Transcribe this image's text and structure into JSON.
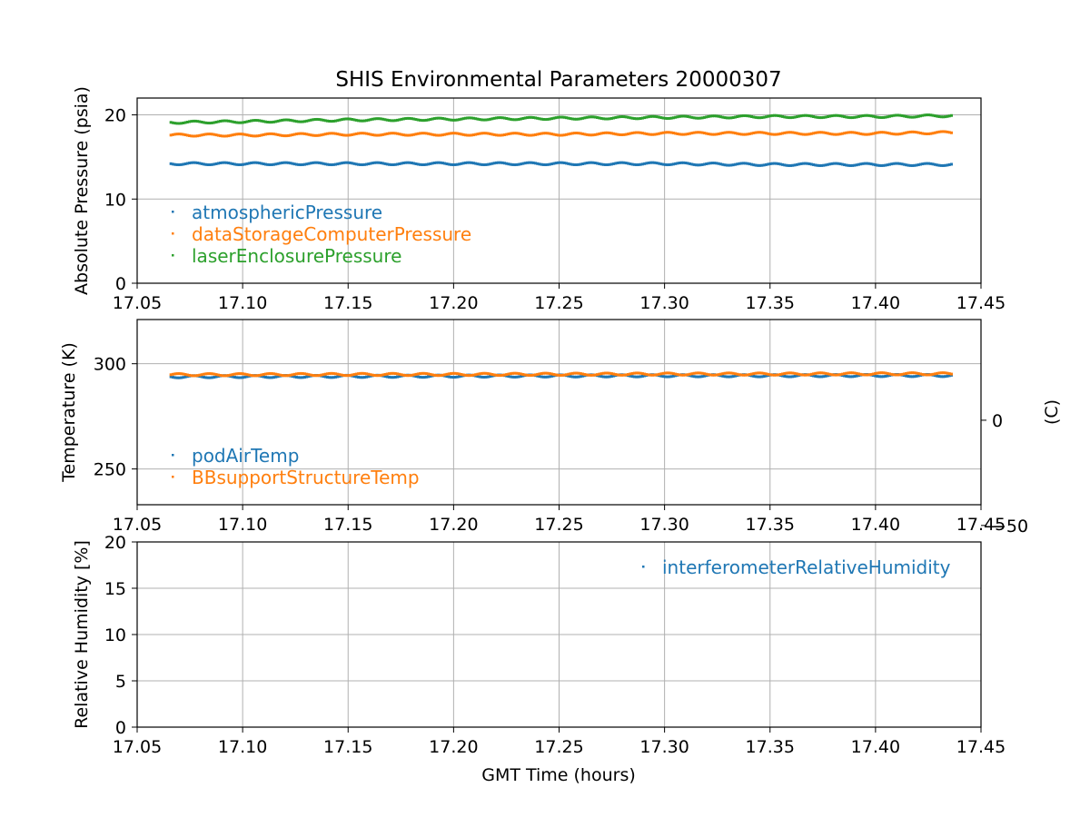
{
  "chart_data": {
    "type": "scatter",
    "title": "SHIS Environmental Parameters 20000307",
    "xlabel": "GMT Time (hours)",
    "xlim": [
      17.05,
      17.45
    ],
    "x_ticks": [
      "17.05",
      "17.10",
      "17.15",
      "17.20",
      "17.25",
      "17.30",
      "17.35",
      "17.40",
      "17.45"
    ],
    "x_tick_values": [
      17.05,
      17.1,
      17.15,
      17.2,
      17.25,
      17.3,
      17.35,
      17.4,
      17.45
    ],
    "grid": true,
    "panels": [
      {
        "ylabel": "Absolute Pressure (psia)",
        "ylim": [
          0,
          22
        ],
        "y_ticks": [
          "0",
          "10",
          "20"
        ],
        "y_tick_values": [
          0,
          10,
          20
        ],
        "legend_loc": "lower-left",
        "series": [
          {
            "name": "atmosphericPressure",
            "color": "#1f77b4",
            "x": [
              17.066,
              17.1,
              17.15,
              17.2,
              17.25,
              17.3,
              17.35,
              17.4,
              17.436
            ],
            "y": [
              14.2,
              14.2,
              14.2,
              14.2,
              14.2,
              14.2,
              14.1,
              14.1,
              14.1
            ]
          },
          {
            "name": "dataStorageComputerPressure",
            "color": "#ff7f0e",
            "x": [
              17.066,
              17.1,
              17.15,
              17.2,
              17.25,
              17.3,
              17.35,
              17.4,
              17.436
            ],
            "y": [
              17.6,
              17.6,
              17.7,
              17.7,
              17.7,
              17.8,
              17.8,
              17.8,
              17.9
            ]
          },
          {
            "name": "laserEnclosurePressure",
            "color": "#2ca02c",
            "x": [
              17.066,
              17.1,
              17.15,
              17.2,
              17.25,
              17.3,
              17.35,
              17.4,
              17.436
            ],
            "y": [
              19.1,
              19.2,
              19.4,
              19.5,
              19.6,
              19.7,
              19.8,
              19.8,
              19.9
            ]
          }
        ]
      },
      {
        "ylabel": "Temperature (K)",
        "ylim": [
          233,
          321
        ],
        "y_ticks": [
          "250",
          "300"
        ],
        "y_tick_values": [
          250,
          300
        ],
        "y2label": "(C)",
        "y2_ticks": [
          "−50",
          "0"
        ],
        "y2_tick_values": [
          -50,
          0
        ],
        "legend_loc": "lower-left",
        "series": [
          {
            "name": "podAirTemp",
            "color": "#1f77b4",
            "x": [
              17.066,
              17.1,
              17.15,
              17.2,
              17.25,
              17.3,
              17.35,
              17.4,
              17.436
            ],
            "y": [
              293.8,
              293.9,
              294.0,
              294.1,
              294.2,
              294.3,
              294.3,
              294.4,
              294.4
            ]
          },
          {
            "name": "BBsupportStructureTemp",
            "color": "#ff7f0e",
            "x": [
              17.066,
              17.1,
              17.15,
              17.2,
              17.25,
              17.3,
              17.35,
              17.4,
              17.436
            ],
            "y": [
              294.8,
              294.8,
              294.9,
              294.9,
              295.0,
              295.1,
              295.1,
              295.2,
              295.2
            ]
          }
        ]
      },
      {
        "ylabel": "Relative Humidity [%]",
        "ylim": [
          0,
          20
        ],
        "y_ticks": [
          "0",
          "5",
          "10",
          "15",
          "20"
        ],
        "y_tick_values": [
          0,
          5,
          10,
          15,
          20
        ],
        "legend_loc": "upper-right",
        "series": [
          {
            "name": "interferometerRelativeHumidity",
            "color": "#1f77b4",
            "x": [],
            "y": []
          }
        ]
      }
    ]
  }
}
